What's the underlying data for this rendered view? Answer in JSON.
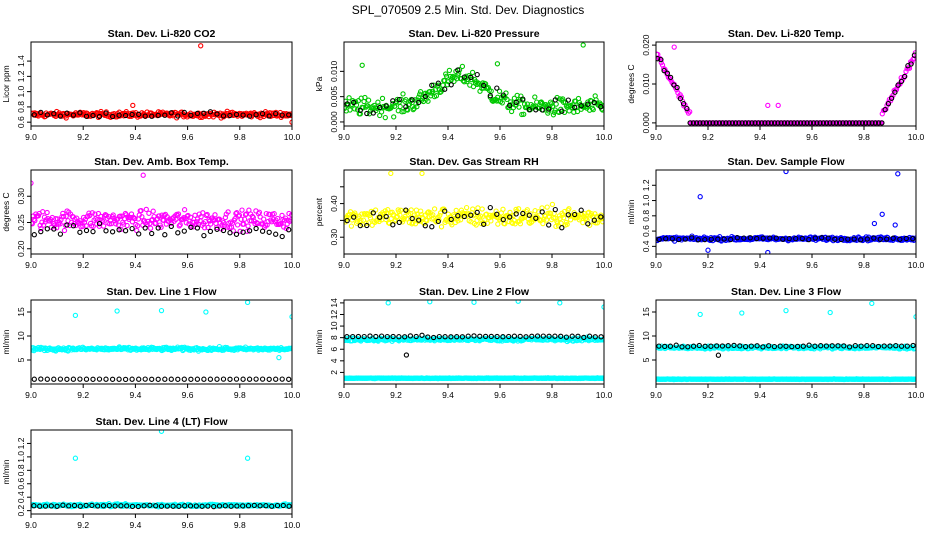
{
  "figure_title": "SPL_070509  2.5 Min. Std. Dev. Diagnostics",
  "colors": {
    "red": "#ff0000",
    "green": "#00c800",
    "magenta": "#ff00ff",
    "yellow": "#ffff00",
    "blue": "#0000ff",
    "cyan": "#00ffff",
    "black": "#000000"
  },
  "chart_data": [
    {
      "id": "co2",
      "type": "scatter",
      "title": "Stan. Dev. Li-820 CO2",
      "xlabel": "",
      "ylabel": "Licor ppm",
      "xlim": [
        9.0,
        10.0
      ],
      "ylim": [
        0.55,
        1.65
      ],
      "xticks": [
        9.0,
        9.2,
        9.4,
        9.6,
        9.8,
        10.0
      ],
      "xtick_labels": [
        "9.0",
        "9.2",
        "9.4",
        "9.6",
        "9.8",
        "10.0"
      ],
      "yticks": [
        0.6,
        0.8,
        1.0,
        1.2,
        1.4
      ],
      "ytick_labels": [
        "0.6",
        "0.8",
        "1.0",
        "1.2",
        "1.4"
      ],
      "series": [
        {
          "name": "primary",
          "color": "#ff0000",
          "count": 300,
          "mode": "band",
          "center": 0.7,
          "spread": 0.06,
          "outliers": [
            [
              9.65,
              1.6
            ],
            [
              9.39,
              0.82
            ],
            [
              10.0,
              0.6
            ]
          ]
        },
        {
          "name": "black",
          "color": "#000000",
          "count": 40,
          "mode": "band",
          "center": 0.7,
          "spread": 0.05
        }
      ]
    },
    {
      "id": "pressure",
      "type": "scatter",
      "title": "Stan. Dev. Li-820 Pressure",
      "xlabel": "",
      "ylabel": "kPa",
      "xlim": [
        9.0,
        10.0
      ],
      "ylim": [
        -0.0008,
        0.0158
      ],
      "xticks": [
        9.0,
        9.2,
        9.4,
        9.6,
        9.8,
        10.0
      ],
      "xtick_labels": [
        "9.0",
        "9.2",
        "9.4",
        "9.6",
        "9.8",
        "10.0"
      ],
      "yticks": [
        0.0,
        0.005,
        0.01
      ],
      "ytick_labels": [
        "0.000",
        "0.005",
        "0.010"
      ],
      "series": [
        {
          "name": "primary",
          "color": "#00c800",
          "count": 280,
          "mode": "hump",
          "center": 0.003,
          "spread": 0.003,
          "outliers": [
            [
              9.92,
              0.0152
            ],
            [
              9.07,
              0.0112
            ],
            [
              9.59,
              0.0115
            ]
          ]
        },
        {
          "name": "black",
          "color": "#000000",
          "count": 40,
          "mode": "hump",
          "center": 0.003,
          "spread": 0.003
        }
      ]
    },
    {
      "id": "temp",
      "type": "scatter",
      "title": "Stan. Dev. Li-820 Temp.",
      "xlabel": "",
      "ylabel": "degrees C",
      "xlim": [
        9.0,
        10.0
      ],
      "ylim": [
        -0.0008,
        0.0208
      ],
      "xticks": [
        9.0,
        9.2,
        9.4,
        9.6,
        9.8,
        10.0
      ],
      "xtick_labels": [
        "9.0",
        "9.2",
        "9.4",
        "9.6",
        "9.8",
        "10.0"
      ],
      "yticks": [
        0.0,
        0.01,
        0.02
      ],
      "ytick_labels": [
        "0.000",
        "0.010",
        "0.020"
      ],
      "series": [
        {
          "name": "primary",
          "color": "#ff00ff",
          "count": 220,
          "mode": "valley",
          "center": 0.0,
          "spread": 0.001,
          "outliers": [
            [
              9.43,
              0.0045
            ],
            [
              9.47,
              0.0045
            ],
            [
              9.07,
              0.0195
            ]
          ]
        },
        {
          "name": "black",
          "color": "#000000",
          "count": 80,
          "mode": "valley",
          "center": 0.0,
          "spread": 0.001
        }
      ]
    },
    {
      "id": "ambtemp",
      "type": "scatter",
      "title": "Stan. Dev. Amb. Box Temp.",
      "xlabel": "",
      "ylabel": "degrees C",
      "xlim": [
        9.0,
        10.0
      ],
      "ylim": [
        0.19,
        0.35
      ],
      "xticks": [
        9.0,
        9.2,
        9.4,
        9.6,
        9.8,
        10.0
      ],
      "xtick_labels": [
        "9.0",
        "9.2",
        "9.4",
        "9.6",
        "9.8",
        "10.0"
      ],
      "yticks": [
        0.2,
        0.25,
        0.3
      ],
      "ytick_labels": [
        "0.20",
        "0.25",
        "0.30"
      ],
      "series": [
        {
          "name": "primary",
          "color": "#ff00ff",
          "count": 300,
          "mode": "band",
          "center": 0.255,
          "spread": 0.03,
          "outliers": [
            [
              9.43,
              0.34
            ],
            [
              9.0,
              0.325
            ]
          ]
        },
        {
          "name": "black",
          "color": "#000000",
          "count": 40,
          "mode": "band",
          "center": 0.235,
          "spread": 0.02
        }
      ]
    },
    {
      "id": "rh",
      "type": "scatter",
      "title": "Stan. Dev. Gas Stream RH",
      "xlabel": "",
      "ylabel": "percent",
      "xlim": [
        9.0,
        10.0
      ],
      "ylim": [
        0.25,
        0.5
      ],
      "xticks": [
        9.0,
        9.2,
        9.4,
        9.6,
        9.8,
        10.0
      ],
      "xtick_labels": [
        "9.0",
        "9.2",
        "9.4",
        "9.6",
        "9.8",
        "10.0"
      ],
      "yticks": [
        0.3,
        0.35,
        0.4,
        0.45
      ],
      "ytick_labels": [
        "0.30",
        "",
        "0.40",
        ""
      ],
      "series": [
        {
          "name": "primary",
          "color": "#ffff00",
          "count": 300,
          "mode": "band",
          "center": 0.36,
          "spread": 0.05,
          "outliers": [
            [
              9.18,
              0.49
            ],
            [
              9.3,
              0.49
            ]
          ]
        },
        {
          "name": "black",
          "color": "#000000",
          "count": 40,
          "mode": "band",
          "center": 0.36,
          "spread": 0.05
        }
      ]
    },
    {
      "id": "sampleflow",
      "type": "scatter",
      "title": "Stan. Dev. Sample Flow",
      "xlabel": "",
      "ylabel": "ml/min",
      "xlim": [
        9.0,
        10.0
      ],
      "ylim": [
        0.3,
        1.4
      ],
      "xticks": [
        9.0,
        9.2,
        9.4,
        9.6,
        9.8,
        10.0
      ],
      "xtick_labels": [
        "9.0",
        "9.2",
        "9.4",
        "9.6",
        "9.8",
        "10.0"
      ],
      "yticks": [
        0.4,
        0.6,
        0.8,
        1.0,
        1.2
      ],
      "ytick_labels": [
        "0.4",
        "0.6",
        "0.8",
        "1.0",
        "1.2"
      ],
      "series": [
        {
          "name": "primary",
          "color": "#0000ff",
          "count": 300,
          "mode": "band",
          "center": 0.5,
          "spread": 0.04,
          "outliers": [
            [
              9.5,
              1.38
            ],
            [
              9.93,
              1.35
            ],
            [
              9.17,
              1.05
            ],
            [
              9.87,
              0.82
            ],
            [
              9.92,
              0.68
            ],
            [
              9.84,
              0.7
            ],
            [
              9.2,
              0.35
            ],
            [
              9.43,
              0.32
            ]
          ]
        },
        {
          "name": "black",
          "color": "#000000",
          "count": 40,
          "mode": "band",
          "center": 0.5,
          "spread": 0.03
        }
      ]
    },
    {
      "id": "line1",
      "type": "scatter",
      "title": "Stan. Dev. Line 1 Flow",
      "xlabel": "",
      "ylabel": "ml/min",
      "xlim": [
        9.0,
        10.0
      ],
      "ylim": [
        0.0,
        17.5
      ],
      "xticks": [
        9.0,
        9.2,
        9.4,
        9.6,
        9.8,
        10.0
      ],
      "xtick_labels": [
        "9.0",
        "9.2",
        "9.4",
        "9.6",
        "9.8",
        "10.0"
      ],
      "yticks": [
        5,
        10,
        15
      ],
      "ytick_labels": [
        "5",
        "10",
        "15"
      ],
      "series": [
        {
          "name": "primary",
          "color": "#00ffff",
          "count": 300,
          "mode": "band",
          "center": 7.3,
          "spread": 0.6,
          "outliers": [
            [
              9.17,
              14.3
            ],
            [
              9.33,
              15.2
            ],
            [
              9.5,
              15.3
            ],
            [
              9.67,
              15.0
            ],
            [
              9.83,
              17.0
            ],
            [
              10.0,
              14.0
            ],
            [
              9.95,
              5.5
            ]
          ]
        },
        {
          "name": "black",
          "color": "#000000",
          "count": 40,
          "mode": "band",
          "center": 1.0,
          "spread": 0.05
        }
      ]
    },
    {
      "id": "line2",
      "type": "scatter",
      "title": "Stan. Dev. Line 2 Flow",
      "xlabel": "",
      "ylabel": "ml/min",
      "xlim": [
        9.0,
        10.0
      ],
      "ylim": [
        0.0,
        14.5
      ],
      "xticks": [
        9.0,
        9.2,
        9.4,
        9.6,
        9.8,
        10.0
      ],
      "xtick_labels": [
        "9.0",
        "9.2",
        "9.4",
        "9.6",
        "9.8",
        "10.0"
      ],
      "yticks": [
        2,
        4,
        6,
        8,
        10,
        12,
        14
      ],
      "ytick_labels": [
        "2",
        "4",
        "6",
        "8",
        "10",
        "12",
        "14"
      ],
      "series": [
        {
          "name": "primary",
          "color": "#00ffff",
          "count": 300,
          "mode": "band",
          "center": 7.7,
          "spread": 0.5,
          "outliers": [
            [
              9.17,
              14.0
            ],
            [
              9.33,
              14.2
            ],
            [
              9.5,
              14.1
            ],
            [
              9.67,
              14.3
            ],
            [
              9.83,
              14.0
            ],
            [
              10.0,
              13.3
            ]
          ]
        },
        {
          "name": "cyan-low",
          "color": "#00ffff",
          "count": 300,
          "mode": "band",
          "center": 1.0,
          "spread": 0.1
        },
        {
          "name": "black",
          "color": "#000000",
          "count": 45,
          "mode": "band",
          "center": 8.2,
          "spread": 0.3,
          "outliers": [
            [
              9.24,
              5.0
            ]
          ]
        }
      ]
    },
    {
      "id": "line3",
      "type": "scatter",
      "title": "Stan. Dev. Line 3 Flow",
      "xlabel": "",
      "ylabel": "ml/min",
      "xlim": [
        9.0,
        10.0
      ],
      "ylim": [
        0.0,
        17.5
      ],
      "xticks": [
        9.0,
        9.2,
        9.4,
        9.6,
        9.8,
        10.0
      ],
      "xtick_labels": [
        "9.0",
        "9.2",
        "9.4",
        "9.6",
        "9.8",
        "10.0"
      ],
      "yticks": [
        5,
        10,
        15
      ],
      "ytick_labels": [
        "5",
        "10",
        "15"
      ],
      "series": [
        {
          "name": "primary",
          "color": "#00ffff",
          "count": 300,
          "mode": "band",
          "center": 7.6,
          "spread": 0.5,
          "outliers": [
            [
              9.17,
              14.5
            ],
            [
              9.33,
              14.8
            ],
            [
              9.5,
              15.3
            ],
            [
              9.67,
              14.9
            ],
            [
              9.83,
              16.8
            ],
            [
              10.0,
              14.0
            ]
          ]
        },
        {
          "name": "cyan-low",
          "color": "#00ffff",
          "count": 300,
          "mode": "band",
          "center": 1.0,
          "spread": 0.1
        },
        {
          "name": "black",
          "color": "#000000",
          "count": 45,
          "mode": "band",
          "center": 7.9,
          "spread": 0.3,
          "outliers": [
            [
              9.24,
              6.0
            ]
          ]
        }
      ]
    },
    {
      "id": "line4",
      "type": "scatter",
      "title": "Stan. Dev. Line 4 (LT) Flow",
      "xlabel": "",
      "ylabel": "ml/min",
      "xlim": [
        9.0,
        10.0
      ],
      "ylim": [
        0.15,
        1.4
      ],
      "xticks": [
        9.0,
        9.2,
        9.4,
        9.6,
        9.8,
        10.0
      ],
      "xtick_labels": [
        "9.0",
        "9.2",
        "9.4",
        "9.6",
        "9.8",
        "10.0"
      ],
      "yticks": [
        0.2,
        0.4,
        0.6,
        0.8,
        1.0,
        1.2
      ],
      "ytick_labels": [
        "0.2",
        "0.4",
        "0.6",
        "0.8",
        "1.0",
        "1.2"
      ],
      "series": [
        {
          "name": "primary",
          "color": "#00ffff",
          "count": 300,
          "mode": "band",
          "center": 0.28,
          "spread": 0.03,
          "outliers": [
            [
              9.5,
              1.38
            ],
            [
              9.17,
              0.98
            ],
            [
              9.83,
              0.98
            ]
          ]
        },
        {
          "name": "black",
          "color": "#000000",
          "count": 45,
          "mode": "band",
          "center": 0.27,
          "spread": 0.02
        }
      ]
    }
  ]
}
